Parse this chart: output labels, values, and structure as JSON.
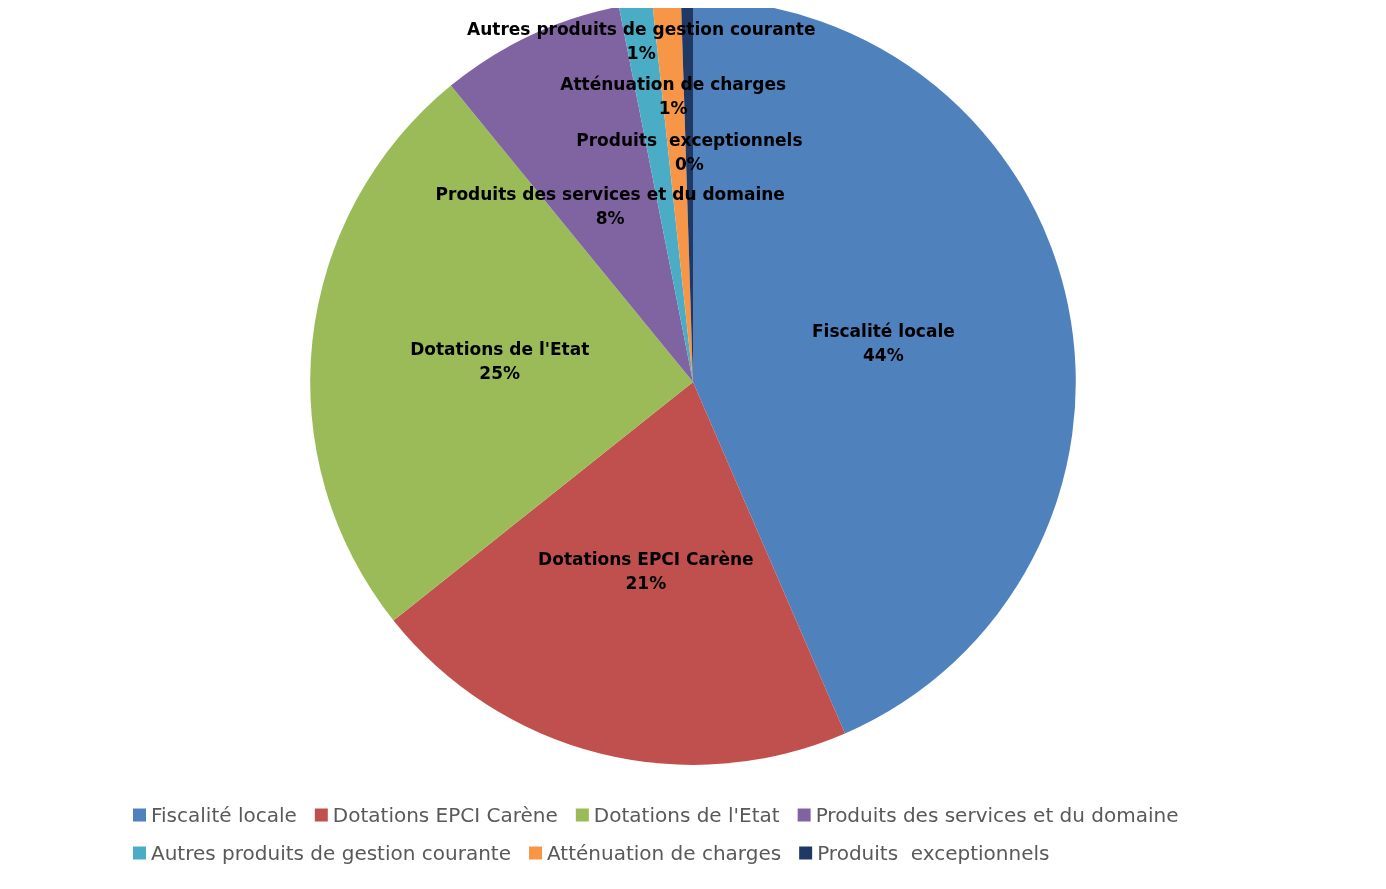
{
  "chart_data": {
    "type": "pie",
    "categories": [
      "Fiscalité locale",
      "Dotations EPCI Carène",
      "Dotations de l'Etat",
      "Produits des services et du domaine",
      "Autres produits de gestion courante",
      "Atténuation de charges",
      "Produits  exceptionnels"
    ],
    "values": [
      43.5,
      20.8,
      24.8,
      7.8,
      1.4,
      1.2,
      0.5
    ],
    "value_labels": [
      "44%",
      "21%",
      "25%",
      "8%",
      "1%",
      "1%",
      "0%"
    ],
    "colors": [
      "#4f81bd",
      "#c0504d",
      "#9bbb59",
      "#8064a2",
      "#4bacc6",
      "#f79646",
      "#1f3864"
    ],
    "legend": "bottom"
  }
}
